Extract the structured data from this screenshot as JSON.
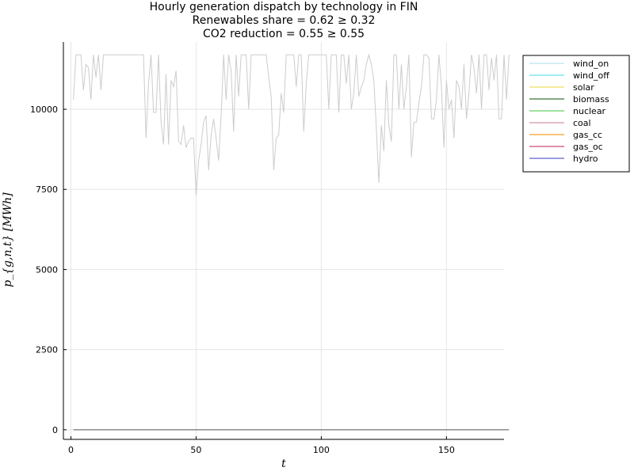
{
  "chart_data": {
    "type": "line",
    "title_lines": [
      "Hourly generation dispatch by technology in FIN",
      "Renewables share = 0.62 ≥ 0.32",
      "CO2 reduction = 0.55 ≥ 0.55"
    ],
    "xlabel": "t",
    "ylabel": "p_{g,n,t} [MWh]",
    "xlim": [
      -3,
      173
    ],
    "ylim": [
      -300,
      12100
    ],
    "x_ticks": [
      0,
      50,
      100,
      150
    ],
    "y_ticks": [
      0,
      2500,
      5000,
      7500,
      10000
    ],
    "grid": true,
    "legend_position": "outer-top-right",
    "series": [
      {
        "name": "wind_on",
        "color": "#c5e8f3",
        "values": []
      },
      {
        "name": "wind_off",
        "color": "#7fe9f0",
        "values": []
      },
      {
        "name": "solar",
        "color": "#f3e67a",
        "values": []
      },
      {
        "name": "biomass",
        "color": "#5a8a5a",
        "values": []
      },
      {
        "name": "nuclear",
        "color": "#7fd87f",
        "values": []
      },
      {
        "name": "coal",
        "color": "#d9a7b8",
        "values": []
      },
      {
        "name": "gas_cc",
        "color": "#f5b04a",
        "values": []
      },
      {
        "name": "gas_oc",
        "color": "#d96a8a",
        "values": []
      },
      {
        "name": "hydro",
        "color": "#7a7fd6",
        "values": []
      }
    ],
    "demand_line": {
      "color": "#cccccc",
      "x_start": 1,
      "values": [
        10300,
        11700,
        11700,
        11700,
        10600,
        11400,
        11300,
        10300,
        11700,
        11000,
        11700,
        10600,
        11700,
        11700,
        11700,
        11700,
        11700,
        11700,
        11700,
        11700,
        11700,
        11700,
        11700,
        11700,
        11700,
        11700,
        11700,
        11700,
        11700,
        9100,
        10800,
        11700,
        9900,
        9900,
        11700,
        9600,
        8900,
        11100,
        8900,
        10900,
        10700,
        11200,
        9000,
        8900,
        9500,
        8800,
        9000,
        9100,
        9100,
        7300,
        8400,
        8900,
        9600,
        9800,
        8100,
        9200,
        9700,
        9100,
        8400,
        9800,
        11700,
        10300,
        11700,
        11200,
        9300,
        11700,
        10400,
        11700,
        11700,
        11700,
        10000,
        11700,
        11700,
        11700,
        11700,
        11700,
        11700,
        11700,
        11000,
        10400,
        8100,
        9100,
        9200,
        10500,
        9900,
        11700,
        11700,
        11700,
        11700,
        10700,
        11700,
        11700,
        9300,
        10800,
        11700,
        11700,
        11700,
        11700,
        11700,
        11700,
        11700,
        11700,
        10000,
        11700,
        11700,
        11700,
        9900,
        11700,
        11700,
        10800,
        11700,
        10000,
        10500,
        11700,
        10400,
        10700,
        10900,
        11400,
        11700,
        11400,
        10900,
        9400,
        7700,
        9500,
        8700,
        10900,
        9500,
        9000,
        11700,
        11700,
        10000,
        11400,
        10000,
        10700,
        11700,
        8500,
        9600,
        9600,
        10200,
        10700,
        11700,
        11700,
        11600,
        9700,
        9700,
        10300,
        11700,
        10700,
        8800,
        10900,
        10000,
        10300,
        9100,
        10900,
        10700,
        10000,
        11400,
        9700,
        10500,
        11700,
        11300,
        10500,
        11700,
        10000,
        11700,
        11700,
        10600,
        11600,
        10900,
        11700,
        9700,
        9700,
        11700,
        10300,
        11700
      ]
    },
    "zero_line": {
      "color": "#555555",
      "value": 0
    }
  }
}
